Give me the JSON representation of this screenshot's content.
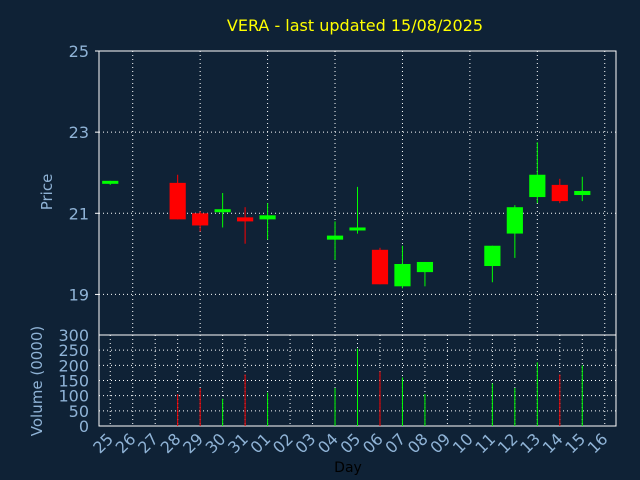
{
  "chart_data": [
    {
      "type": "candlestick",
      "title": "VERA - last updated 15/08/2025",
      "ylabel": "Price",
      "ylim": [
        18,
        25
      ],
      "yticks": [
        19,
        21,
        23,
        25
      ],
      "grid": true,
      "colors": {
        "up": "#00ff00",
        "down": "#ff0000",
        "background": "#0f2236",
        "grid": "#ffffff",
        "title": "#ffff00",
        "axis_text": "#8fb3d6"
      },
      "x": [
        "25",
        "26",
        "27",
        "28",
        "29",
        "30",
        "31",
        "01",
        "02",
        "03",
        "04",
        "05",
        "06",
        "07",
        "08",
        "09",
        "10",
        "11",
        "12",
        "13",
        "14",
        "15",
        "16"
      ],
      "candles": [
        {
          "x": "25",
          "open": 21.75,
          "high": 21.8,
          "low": 21.7,
          "close": 21.8
        },
        {
          "x": "28",
          "open": 21.75,
          "high": 21.95,
          "low": 20.85,
          "close": 20.85
        },
        {
          "x": "29",
          "open": 21.0,
          "high": 21.05,
          "low": 20.55,
          "close": 20.7
        },
        {
          "x": "30",
          "open": 21.05,
          "high": 21.5,
          "low": 20.65,
          "close": 21.1
        },
        {
          "x": "31",
          "open": 20.9,
          "high": 21.15,
          "low": 20.25,
          "close": 20.8
        },
        {
          "x": "01",
          "open": 20.85,
          "high": 21.25,
          "low": 20.35,
          "close": 20.95
        },
        {
          "x": "04",
          "open": 20.35,
          "high": 20.8,
          "low": 19.85,
          "close": 20.45
        },
        {
          "x": "05",
          "open": 20.6,
          "high": 21.65,
          "low": 20.5,
          "close": 20.65
        },
        {
          "x": "06",
          "open": 20.1,
          "high": 20.15,
          "low": 19.25,
          "close": 19.25
        },
        {
          "x": "07",
          "open": 19.2,
          "high": 20.2,
          "low": 19.15,
          "close": 19.75
        },
        {
          "x": "08",
          "open": 19.55,
          "high": 19.8,
          "low": 19.2,
          "close": 19.8
        },
        {
          "x": "11",
          "open": 19.7,
          "high": 20.2,
          "low": 19.3,
          "close": 20.2
        },
        {
          "x": "12",
          "open": 20.5,
          "high": 21.2,
          "low": 19.9,
          "close": 21.15
        },
        {
          "x": "13",
          "open": 21.4,
          "high": 22.75,
          "low": 21.25,
          "close": 21.95
        },
        {
          "x": "14",
          "open": 21.7,
          "high": 21.85,
          "low": 21.25,
          "close": 21.3
        },
        {
          "x": "15",
          "open": 21.45,
          "high": 21.9,
          "low": 21.3,
          "close": 21.55
        }
      ]
    },
    {
      "type": "bar",
      "xlabel": "Day",
      "ylabel": "Volume (0000)",
      "ylim": [
        0,
        300
      ],
      "yticks": [
        0,
        50,
        100,
        150,
        200,
        250,
        300
      ],
      "grid": true,
      "x": [
        "25",
        "26",
        "27",
        "28",
        "29",
        "30",
        "31",
        "01",
        "02",
        "03",
        "04",
        "05",
        "06",
        "07",
        "08",
        "09",
        "10",
        "11",
        "12",
        "13",
        "14",
        "15",
        "16"
      ],
      "bars": [
        {
          "x": "28",
          "value": 105,
          "dir": "down"
        },
        {
          "x": "29",
          "value": 125,
          "dir": "down"
        },
        {
          "x": "30",
          "value": 90,
          "dir": "up"
        },
        {
          "x": "31",
          "value": 170,
          "dir": "down"
        },
        {
          "x": "01",
          "value": 110,
          "dir": "up"
        },
        {
          "x": "04",
          "value": 125,
          "dir": "up"
        },
        {
          "x": "05",
          "value": 255,
          "dir": "up"
        },
        {
          "x": "06",
          "value": 180,
          "dir": "down"
        },
        {
          "x": "07",
          "value": 160,
          "dir": "up"
        },
        {
          "x": "08",
          "value": 105,
          "dir": "up"
        },
        {
          "x": "11",
          "value": 140,
          "dir": "up"
        },
        {
          "x": "12",
          "value": 125,
          "dir": "up"
        },
        {
          "x": "13",
          "value": 210,
          "dir": "up"
        },
        {
          "x": "14",
          "value": 170,
          "dir": "down"
        },
        {
          "x": "15",
          "value": 200,
          "dir": "up"
        }
      ]
    }
  ]
}
